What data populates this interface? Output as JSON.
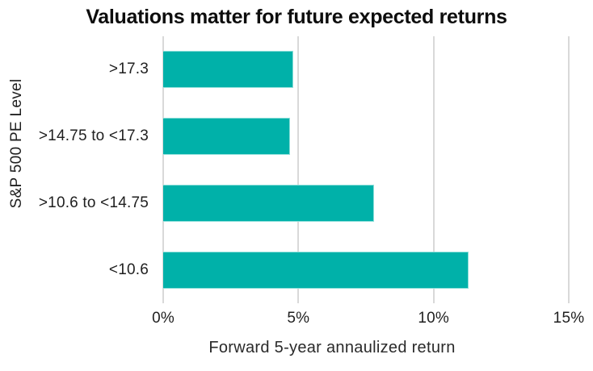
{
  "title": "Valuations matter for future expected returns",
  "chart_data": {
    "type": "bar",
    "orientation": "horizontal",
    "title": "Valuations matter for future expected returns",
    "xlabel": "Forward 5-year annaulized return",
    "ylabel": "S&P 500 PE Level",
    "categories": [
      ">17.3",
      ">14.75 to <17.3",
      ">10.6 to <14.75",
      "<10.6"
    ],
    "values": [
      4.8,
      4.7,
      7.8,
      11.3
    ],
    "value_unit": "%",
    "xlim": [
      0,
      15
    ],
    "xticks": [
      0,
      5,
      10,
      15
    ],
    "xtick_labels": [
      "0%",
      "5%",
      "10%",
      "15%"
    ],
    "grid": "vertical-gridlines",
    "legend": "none",
    "bar_color": "#00b1a9",
    "bar_border_color": "#8fdfda",
    "gridline_color": "#d9d9d9",
    "title_color": "#0d0d0d",
    "label_color": "#1f1f1f"
  }
}
